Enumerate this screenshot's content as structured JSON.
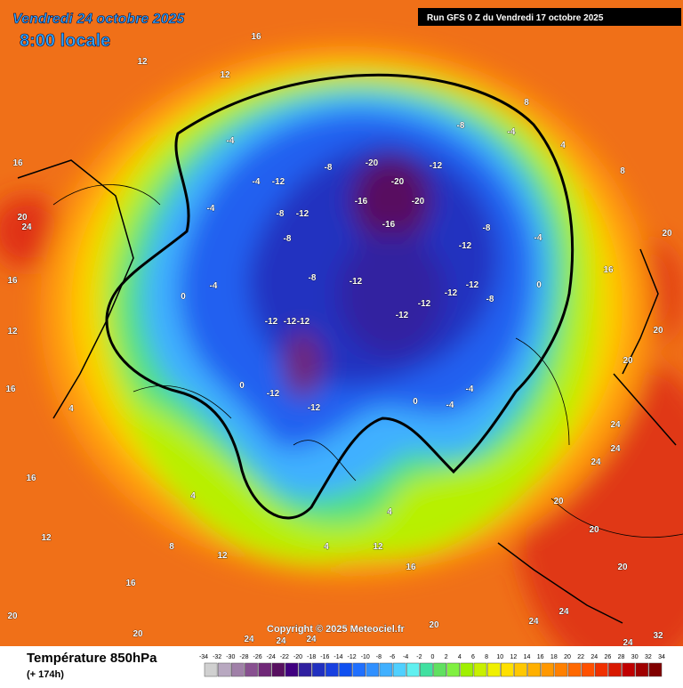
{
  "header": {
    "date": "Vendredi 24 octobre 2025",
    "time": "8:00 locale",
    "run": "Run GFS 0 Z du Vendredi 17 octobre 2025"
  },
  "copyright": "Copyright © 2025 Meteociel.fr",
  "legend": {
    "title": "Température 850hPa",
    "subtitle": "(+ 174h)",
    "ticks": [
      -34,
      -32,
      -30,
      -28,
      -26,
      -24,
      -22,
      -20,
      -18,
      -16,
      -14,
      -12,
      -10,
      -8,
      -6,
      -4,
      -2,
      0,
      2,
      4,
      6,
      8,
      10,
      12,
      14,
      16,
      18,
      20,
      22,
      24,
      26,
      28,
      30,
      32,
      34
    ],
    "colors": [
      "#d0d0d0",
      "#b8a8c0",
      "#a080a8",
      "#885090",
      "#702878",
      "#581060",
      "#400080",
      "#3020a0",
      "#2030c0",
      "#1840e0",
      "#1050f0",
      "#2070ff",
      "#3090ff",
      "#40b0ff",
      "#50d0ff",
      "#60f0f0",
      "#40e0a0",
      "#60e060",
      "#80f040",
      "#a0f000",
      "#c8f000",
      "#f0f000",
      "#ffe000",
      "#ffc800",
      "#ffb000",
      "#ff9800",
      "#ff8000",
      "#ff6800",
      "#ff5000",
      "#f03000",
      "#d81800",
      "#c00000",
      "#a00000",
      "#800000"
    ]
  },
  "map": {
    "contour_labels": [
      -20,
      -20,
      -20,
      -16,
      -16,
      -12,
      -12,
      -12,
      -12,
      -12,
      -12,
      -12,
      -12,
      -12,
      -12,
      -12,
      -12,
      -12,
      -12,
      -8,
      -8,
      -8,
      -8,
      -8,
      -8,
      -8,
      -4,
      -4,
      -4,
      -4,
      -4,
      -4,
      -4,
      -4,
      0,
      0,
      0,
      0,
      8,
      4,
      8,
      16,
      20,
      20,
      20,
      24,
      24,
      24,
      16,
      20,
      24,
      16,
      16,
      12,
      12,
      16,
      12,
      12,
      16,
      20,
      20,
      24,
      24,
      24,
      20,
      24,
      24,
      24,
      32,
      20,
      20,
      20,
      16,
      4,
      4,
      8,
      12,
      4,
      12,
      16,
      4
    ]
  }
}
